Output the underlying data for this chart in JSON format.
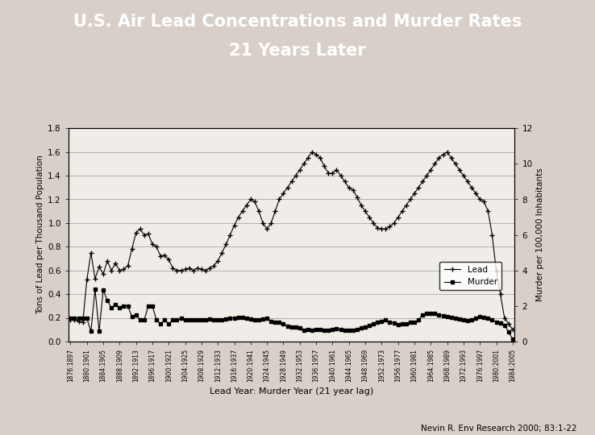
{
  "title_line1": "U.S. Air Lead Concentrations and Murder Rates",
  "title_line2": "21 Years Later",
  "title_bg": "#1a5276",
  "title_stripe": "#e8c840",
  "title_color": "#ffffff",
  "xlabel": "Lead Year: Murder Year (21 year lag)",
  "ylabel_left": "Tons of Lead per Thousand Population",
  "ylabel_right": "Murder per 100,000 Inhabitants",
  "credit": "Nevin R. Env Research 2000; 83:1-22",
  "lead_ylim": [
    0.0,
    1.8
  ],
  "murder_ylim": [
    0,
    12
  ],
  "lead_yticks": [
    0.0,
    0.2,
    0.4,
    0.6,
    0.8,
    1.0,
    1.2,
    1.4,
    1.6,
    1.8
  ],
  "murder_yticks": [
    0,
    2,
    4,
    6,
    8,
    10,
    12
  ],
  "years": [
    1876,
    1877,
    1878,
    1879,
    1880,
    1881,
    1882,
    1883,
    1884,
    1885,
    1886,
    1887,
    1888,
    1889,
    1890,
    1891,
    1892,
    1893,
    1894,
    1895,
    1896,
    1897,
    1898,
    1899,
    1900,
    1901,
    1902,
    1903,
    1904,
    1905,
    1906,
    1907,
    1908,
    1909,
    1910,
    1911,
    1912,
    1913,
    1914,
    1915,
    1916,
    1917,
    1918,
    1919,
    1920,
    1921,
    1922,
    1923,
    1924,
    1925,
    1926,
    1927,
    1928,
    1929,
    1930,
    1931,
    1932,
    1933,
    1934,
    1935,
    1936,
    1937,
    1938,
    1939,
    1940,
    1941,
    1942,
    1943,
    1944,
    1945,
    1946,
    1947,
    1948,
    1949,
    1950,
    1951,
    1952,
    1953,
    1954,
    1955,
    1956,
    1957,
    1958,
    1959,
    1960,
    1961,
    1962,
    1963,
    1964,
    1965,
    1966,
    1967,
    1968,
    1969,
    1970,
    1971,
    1972,
    1973,
    1974,
    1975,
    1976,
    1977,
    1978,
    1979,
    1980,
    1981,
    1982,
    1983,
    1984
  ],
  "lead": [
    0.18,
    0.18,
    0.17,
    0.16,
    0.52,
    0.75,
    0.53,
    0.63,
    0.57,
    0.68,
    0.6,
    0.66,
    0.6,
    0.61,
    0.64,
    0.78,
    0.92,
    0.95,
    0.9,
    0.91,
    0.82,
    0.8,
    0.72,
    0.73,
    0.69,
    0.62,
    0.6,
    0.6,
    0.61,
    0.62,
    0.6,
    0.62,
    0.61,
    0.6,
    0.62,
    0.64,
    0.68,
    0.75,
    0.82,
    0.9,
    0.98,
    1.05,
    1.1,
    1.15,
    1.2,
    1.18,
    1.1,
    1.0,
    0.95,
    1.0,
    1.1,
    1.2,
    1.25,
    1.3,
    1.35,
    1.4,
    1.45,
    1.5,
    1.55,
    1.6,
    1.58,
    1.55,
    1.48,
    1.42,
    1.42,
    1.45,
    1.4,
    1.35,
    1.3,
    1.28,
    1.22,
    1.15,
    1.1,
    1.05,
    1.0,
    0.96,
    0.95,
    0.95,
    0.97,
    1.0,
    1.05,
    1.1,
    1.15,
    1.2,
    1.25,
    1.3,
    1.35,
    1.4,
    1.45,
    1.5,
    1.55,
    1.58,
    1.6,
    1.55,
    1.5,
    1.45,
    1.4,
    1.35,
    1.3,
    1.25,
    1.2,
    1.18,
    1.1,
    0.9,
    0.6,
    0.4,
    0.2,
    0.15,
    0.1
  ],
  "murder": [
    1.3,
    1.3,
    1.3,
    1.3,
    1.3,
    0.57,
    2.95,
    0.58,
    2.9,
    2.3,
    1.9,
    2.1,
    1.9,
    2.0,
    2.0,
    1.4,
    1.5,
    1.2,
    1.2,
    2.0,
    2.0,
    1.2,
    1.0,
    1.2,
    1.0,
    1.2,
    1.2,
    1.3,
    1.2,
    1.2,
    1.2,
    1.2,
    1.2,
    1.2,
    1.25,
    1.2,
    1.22,
    1.22,
    1.28,
    1.3,
    1.33,
    1.35,
    1.35,
    1.3,
    1.28,
    1.2,
    1.2,
    1.25,
    1.3,
    1.15,
    1.1,
    1.1,
    1.0,
    0.85,
    0.8,
    0.8,
    0.75,
    0.65,
    0.68,
    0.65,
    0.68,
    0.68,
    0.65,
    0.65,
    0.68,
    0.7,
    0.68,
    0.65,
    0.65,
    0.62,
    0.68,
    0.75,
    0.8,
    0.9,
    1.0,
    1.1,
    1.15,
    1.2,
    1.1,
    1.05,
    0.96,
    0.98,
    1.0,
    1.1,
    1.1,
    1.2,
    1.5,
    1.6,
    1.6,
    1.58,
    1.5,
    1.45,
    1.4,
    1.35,
    1.3,
    1.28,
    1.2,
    1.18,
    1.2,
    1.3,
    1.4,
    1.35,
    1.3,
    1.2,
    1.1,
    1.05,
    0.92,
    0.55,
    0.12
  ],
  "x_tick_labels": [
    "1876:1897",
    "1880:1901",
    "1884:1905",
    "1888:1909",
    "1892:1913",
    "1896:1917",
    "1900:1921",
    "1904:1925",
    "1908:1929",
    "1912:1933",
    "1916:1937",
    "1920:1941",
    "1924:1945",
    "1928:1949",
    "1932:1953",
    "1936:1957",
    "1940:1961",
    "1944:1965",
    "1948:1969",
    "1952:1973",
    "1956:1977",
    "1960:1981",
    "1964:1985",
    "1968:1989",
    "1972:1993",
    "1976:1997",
    "1980:2001",
    "1984:2005"
  ],
  "chart_bg": "#d8d0c8",
  "scan_bg": "#e8e0d8",
  "plot_bg": "#f0ece8",
  "lead_color": "#000000",
  "murder_color": "#000000",
  "lead_marker": "+",
  "murder_marker": "s",
  "title_fontsize": 15
}
